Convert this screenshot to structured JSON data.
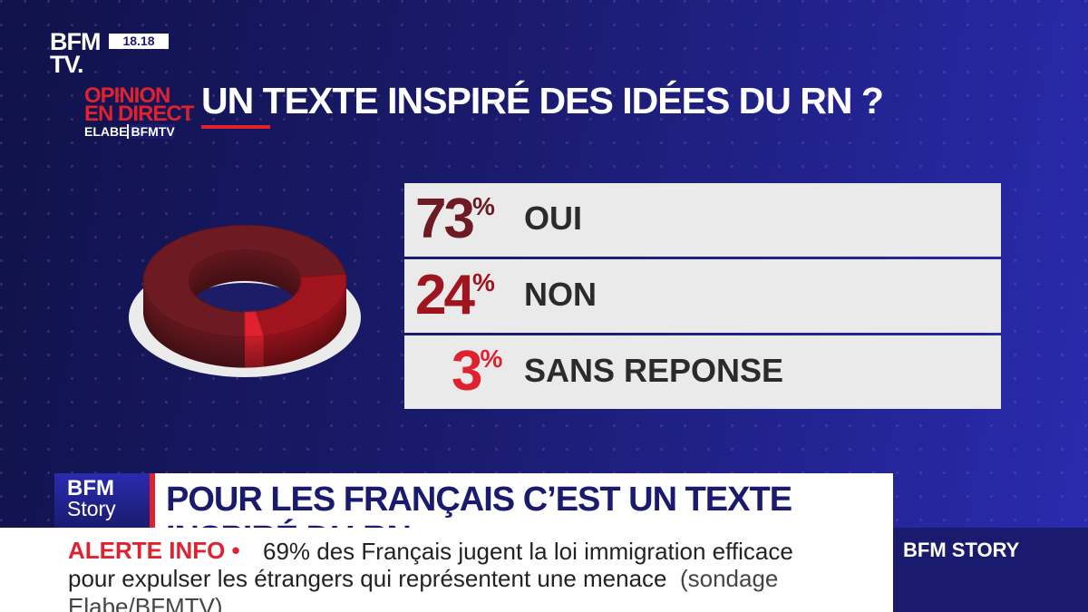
{
  "channel": {
    "logo_line1": "BFM",
    "logo_line2": "TV.",
    "clock": "18.18"
  },
  "segment": {
    "line1": "OPINION",
    "line2": "EN DIRECT",
    "line3a": "ELABE",
    "line3b": "BFMTV"
  },
  "headline": "UN TEXTE INSPIRÉ DES IDÉES DU RN ?",
  "colors": {
    "oui": "#6e1a22",
    "non": "#a0141e",
    "sans_reponse": "#e0222f",
    "accent": "#e0222f",
    "navy": "#1a1b6e"
  },
  "chart_data": {
    "type": "pie",
    "title": "UN TEXTE INSPIRÉ DES IDÉES DU RN ?",
    "categories": [
      "OUI",
      "NON",
      "SANS REPONSE"
    ],
    "values": [
      73,
      24,
      3
    ],
    "unit": "%"
  },
  "results": [
    {
      "pct": "73",
      "sign": "%",
      "label": "OUI"
    },
    {
      "pct": "24",
      "sign": "%",
      "label": "NON"
    },
    {
      "pct": "3",
      "sign": "%",
      "label": "SANS REPONSE"
    }
  ],
  "story": {
    "logo_a": "BFM",
    "logo_b": "Story",
    "text": "POUR LES FRANÇAIS C’EST UN TEXTE INSPIRÉ DU RN"
  },
  "ticker": {
    "alert": "ALERTE INFO •",
    "line1": "69% des Français jugent la loi immigration efficace",
    "line2": "pour expulser les étrangers qui représentent une menace",
    "source": "(sondage Elabe/BFMTV)",
    "brand": "BFM STORY"
  }
}
